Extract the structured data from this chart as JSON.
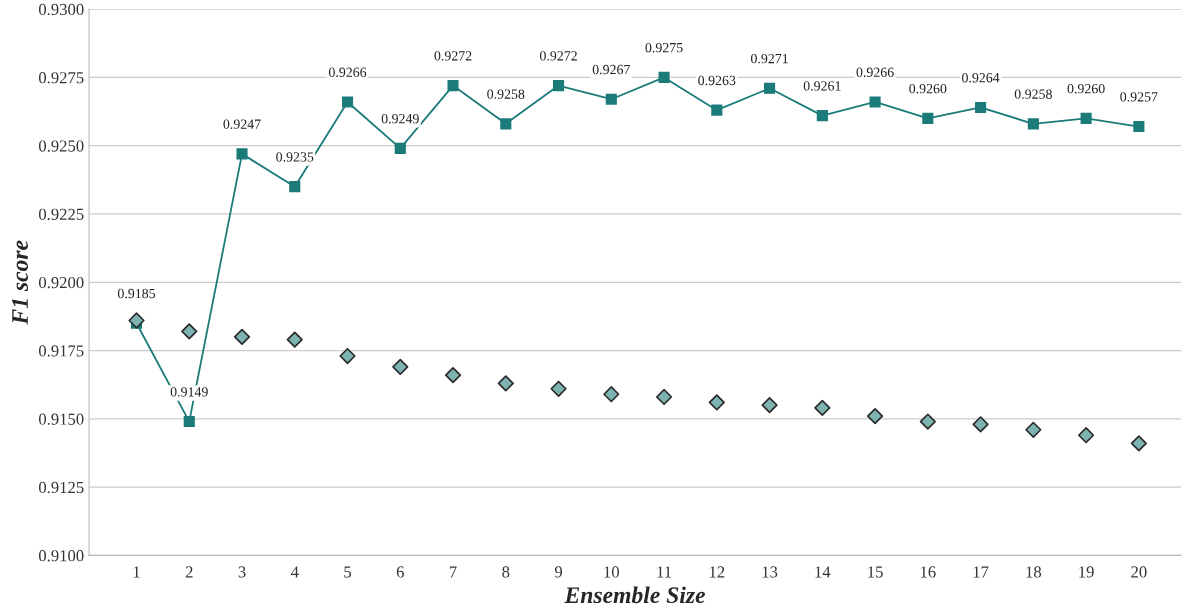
{
  "chart_data": {
    "type": "line",
    "xlabel": "Ensemble Size",
    "ylabel": "F1 score",
    "categories": [
      "1",
      "2",
      "3",
      "4",
      "5",
      "6",
      "7",
      "8",
      "9",
      "10",
      "11",
      "12",
      "13",
      "14",
      "15",
      "16",
      "17",
      "18",
      "19",
      "20"
    ],
    "series": [
      {
        "color": "#1b7b79",
        "marker": "square",
        "line_style": "solid",
        "values": [
          0.9185,
          0.9149,
          0.9247,
          0.9235,
          0.9266,
          0.9249,
          0.9272,
          0.9258,
          0.9272,
          0.9267,
          0.9275,
          0.9263,
          0.9271,
          0.9261,
          0.9266,
          0.926,
          0.9264,
          0.9258,
          0.926,
          0.9257
        ],
        "value_labels": [
          "0.9185",
          "0.9149",
          "0.9247",
          "0.9235",
          "0.9266",
          "0.9249",
          "0.9272",
          "0.9258",
          "0.9272",
          "0.9267",
          "0.9275",
          "0.9263",
          "0.9271",
          "0.9261",
          "0.9266",
          "0.9260",
          "0.9264",
          "0.9258",
          "0.9260",
          "0.9257"
        ]
      },
      {
        "type": "scatter",
        "color": "#7db3b1",
        "marker": "diamond",
        "values": [
          0.9186,
          0.9182,
          0.918,
          0.9179,
          0.9173,
          0.9169,
          0.9166,
          0.9163,
          0.9161,
          0.9159,
          0.9158,
          0.9156,
          0.9155,
          0.9154,
          0.9151,
          0.9149,
          0.9148,
          0.9146,
          0.9144,
          0.9141
        ]
      }
    ],
    "ylim": [
      0.91,
      0.93
    ],
    "yticks": [
      {
        "value": 0.91,
        "label": "0.9100"
      },
      {
        "value": 0.9125,
        "label": "0.9125"
      },
      {
        "value": 0.915,
        "label": "0.9150"
      },
      {
        "value": 0.9175,
        "label": "0.9175"
      },
      {
        "value": 0.92,
        "label": "0.9200"
      },
      {
        "value": 0.9225,
        "label": "0.9225"
      },
      {
        "value": 0.925,
        "label": "0.9250"
      },
      {
        "value": 0.9275,
        "label": "0.9275"
      },
      {
        "value": 0.93,
        "label": "0.9300"
      }
    ],
    "grid": "y",
    "legend": false
  }
}
